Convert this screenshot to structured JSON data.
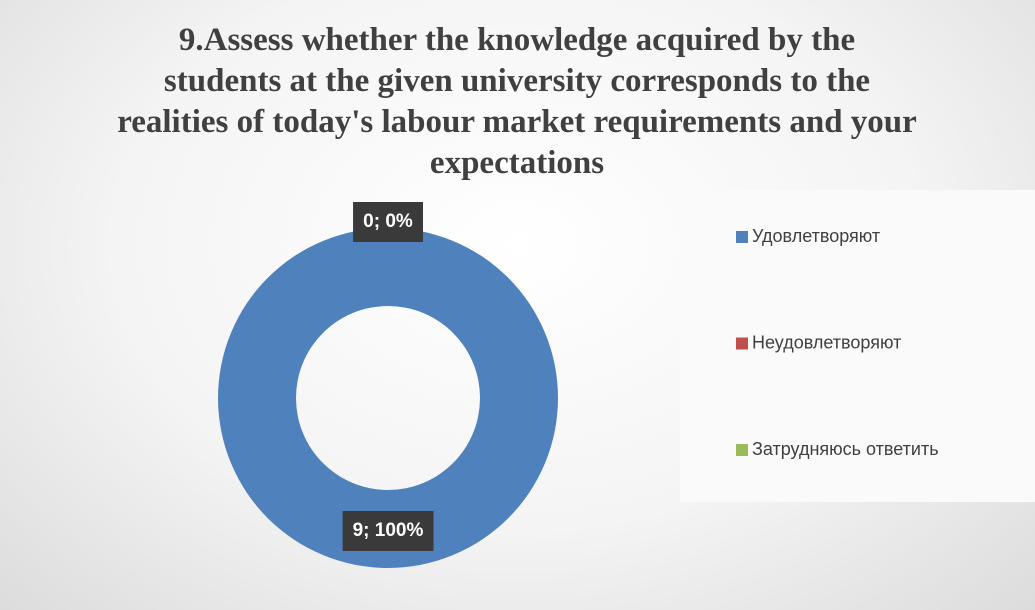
{
  "chart_data": {
    "type": "donut",
    "title": "9.Assess whether the knowledge acquired by the students at the given university corresponds to the realities of today's labour market requirements and your expectations",
    "categories": [
      "Удовлетворяют",
      "Неудовлетворяют",
      "Затрудняюсь ответить"
    ],
    "values": [
      9,
      0,
      0
    ],
    "value_labels": [
      "9; 100%",
      "0; 0%",
      "0; 0%"
    ],
    "colors": [
      "#4f81bd",
      "#c0504d",
      "#9bbb59"
    ],
    "legend": "right"
  }
}
